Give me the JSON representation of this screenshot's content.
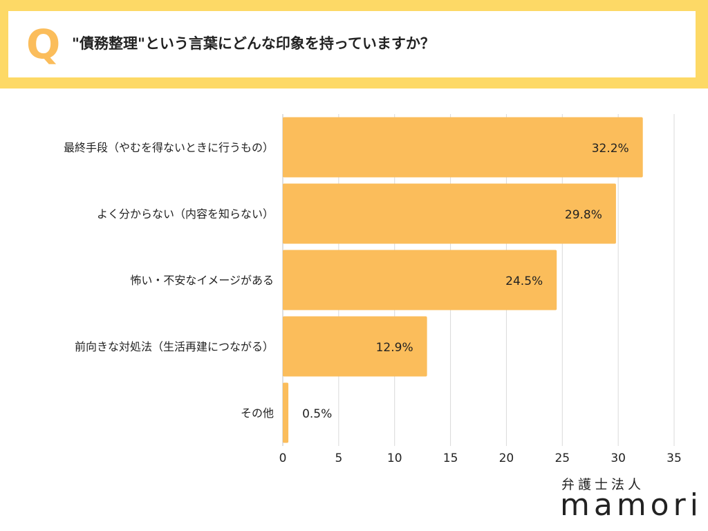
{
  "question": {
    "marker": "Q",
    "text": "\"債務整理\"という言葉にどんな印象を持っていますか？"
  },
  "logo": {
    "subtitle": "弁護士法人",
    "name": "mamori"
  },
  "colors": {
    "bar": "#fbbd5b",
    "frame": "#fdd966",
    "grid": "#d9d9d9",
    "text": "#222222"
  },
  "chart_data": {
    "type": "bar",
    "orientation": "horizontal",
    "categories": [
      "最終手段（やむを得ないときに行うもの）",
      "よく分からない（内容を知らない）",
      "怖い・不安なイメージがある",
      "前向きな対処法（生活再建につながる）",
      "その他"
    ],
    "values": [
      32.2,
      29.8,
      24.5,
      12.9,
      0.5
    ],
    "value_labels": [
      "32.2%",
      "29.8%",
      "24.5%",
      "12.9%",
      "0.5%"
    ],
    "xlim": [
      0,
      35
    ],
    "xticks": [
      0,
      5,
      10,
      15,
      20,
      25,
      30,
      35
    ],
    "grid": true,
    "legend": "none"
  }
}
